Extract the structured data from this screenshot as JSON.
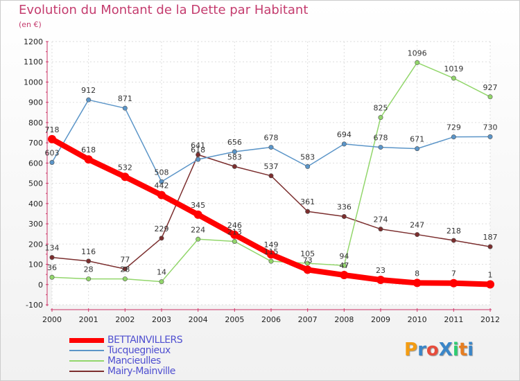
{
  "title": "Evolution du Montant de la Dette par Habitant",
  "subtitle": "(en €)",
  "logo_text": "ProXiti",
  "chart_data": {
    "type": "line",
    "x": [
      "2000",
      "2001",
      "2002",
      "2003",
      "2004",
      "2005",
      "2006",
      "2007",
      "2008",
      "2009",
      "2010",
      "2011",
      "2012"
    ],
    "ylim": [
      -100,
      1200
    ],
    "yticks": [
      "-100",
      "0",
      "100",
      "200",
      "300",
      "400",
      "500",
      "600",
      "700",
      "800",
      "900",
      "1000",
      "1100",
      "1200"
    ],
    "grid": true,
    "legend_position": "bottom-left",
    "series": [
      {
        "name": "BETTAINVILLERS",
        "color": "#ff0000",
        "values": [
          718,
          618,
          532,
          442,
          345,
          246,
          149,
          73,
          47,
          23,
          8,
          7,
          1
        ],
        "labels": [
          "718",
          "618",
          "532",
          "442",
          "345",
          "246",
          "149",
          "73",
          "47",
          "23",
          "8",
          "7",
          "1"
        ]
      },
      {
        "name": "Tucquegnieux",
        "color": "#5b95c8",
        "values": [
          603,
          912,
          871,
          508,
          618,
          656,
          678,
          583,
          694,
          678,
          671,
          729,
          730
        ],
        "labels": [
          "603",
          "912",
          "871",
          "508",
          "618",
          "656",
          "678",
          "583",
          "694",
          "678",
          "671",
          "729",
          "730"
        ]
      },
      {
        "name": "Mancieulles",
        "color": "#92d66b",
        "values": [
          36,
          28,
          28,
          14,
          224,
          213,
          115,
          105,
          94,
          825,
          1096,
          1019,
          927
        ],
        "labels": [
          "36",
          "28",
          "28",
          "14",
          "224",
          "213",
          "115",
          "105",
          "94",
          "825",
          "1096",
          "1019",
          "927"
        ]
      },
      {
        "name": "Mairy-Mainville",
        "color": "#7b2e2e",
        "values": [
          134,
          116,
          77,
          229,
          641,
          583,
          537,
          361,
          336,
          274,
          247,
          218,
          187
        ],
        "labels": [
          "134",
          "116",
          "77",
          "229",
          "641",
          "583",
          "537",
          "361",
          "336",
          "274",
          "247",
          "218",
          "187"
        ]
      }
    ]
  }
}
